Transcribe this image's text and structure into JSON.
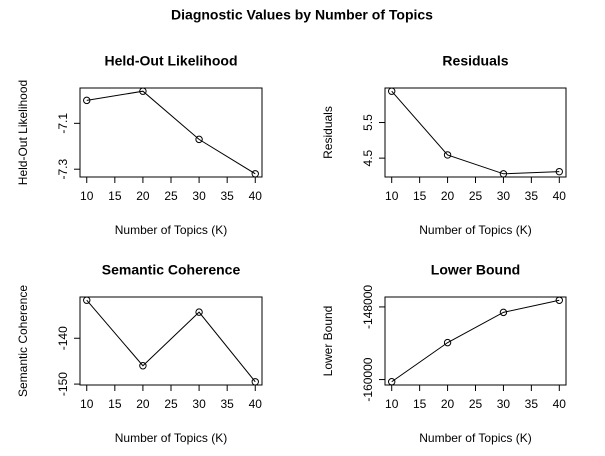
{
  "title": "Diagnostic Values by Number of Topics",
  "chart_data": [
    {
      "type": "line",
      "title": "Held-Out Likelihood",
      "xlabel": "Number of Topics (K)",
      "ylabel": "Held-Out Likelihood",
      "x": [
        10,
        20,
        30,
        40
      ],
      "values": [
        -7.0,
        -6.96,
        -7.17,
        -7.32
      ],
      "color": "#000000",
      "xlim": [
        8.8,
        41.2
      ],
      "ylim": [
        -7.334,
        -6.946
      ],
      "xticks": [
        10,
        15,
        20,
        25,
        30,
        35,
        40
      ],
      "yticks": [
        -7.3,
        -7.1
      ]
    },
    {
      "type": "line",
      "title": "Residuals",
      "xlabel": "Number of Topics (K)",
      "ylabel": "Residuals",
      "x": [
        10,
        20,
        30,
        40
      ],
      "values": [
        6.38,
        4.59,
        4.06,
        4.12
      ],
      "color": "#000000",
      "xlim": [
        8.8,
        41.2
      ],
      "ylim": [
        3.97,
        6.47
      ],
      "xticks": [
        10,
        15,
        20,
        25,
        30,
        35,
        40
      ],
      "yticks": [
        4.5,
        5.5
      ]
    },
    {
      "type": "line",
      "title": "Semantic Coherence",
      "xlabel": "Number of Topics (K)",
      "ylabel": "Semantic Coherence",
      "x": [
        10,
        20,
        30,
        40
      ],
      "values": [
        -131.7,
        -146.0,
        -134.3,
        -149.5
      ],
      "color": "#000000",
      "xlim": [
        8.8,
        41.2
      ],
      "ylim": [
        -150.2,
        -131.0
      ],
      "xticks": [
        10,
        15,
        20,
        25,
        30,
        35,
        40
      ],
      "yticks": [
        -150,
        -140
      ]
    },
    {
      "type": "line",
      "title": "Lower Bound",
      "xlabel": "Number of Topics (K)",
      "ylabel": "Lower Bound",
      "x": [
        10,
        20,
        30,
        40
      ],
      "values": [
        -160360,
        -153900,
        -148900,
        -146900
      ],
      "color": "#000000",
      "xlim": [
        8.8,
        41.2
      ],
      "ylim": [
        -160900,
        -146360
      ],
      "xticks": [
        10,
        15,
        20,
        25,
        30,
        35,
        40
      ],
      "yticks": [
        -160000,
        -148000
      ]
    }
  ]
}
